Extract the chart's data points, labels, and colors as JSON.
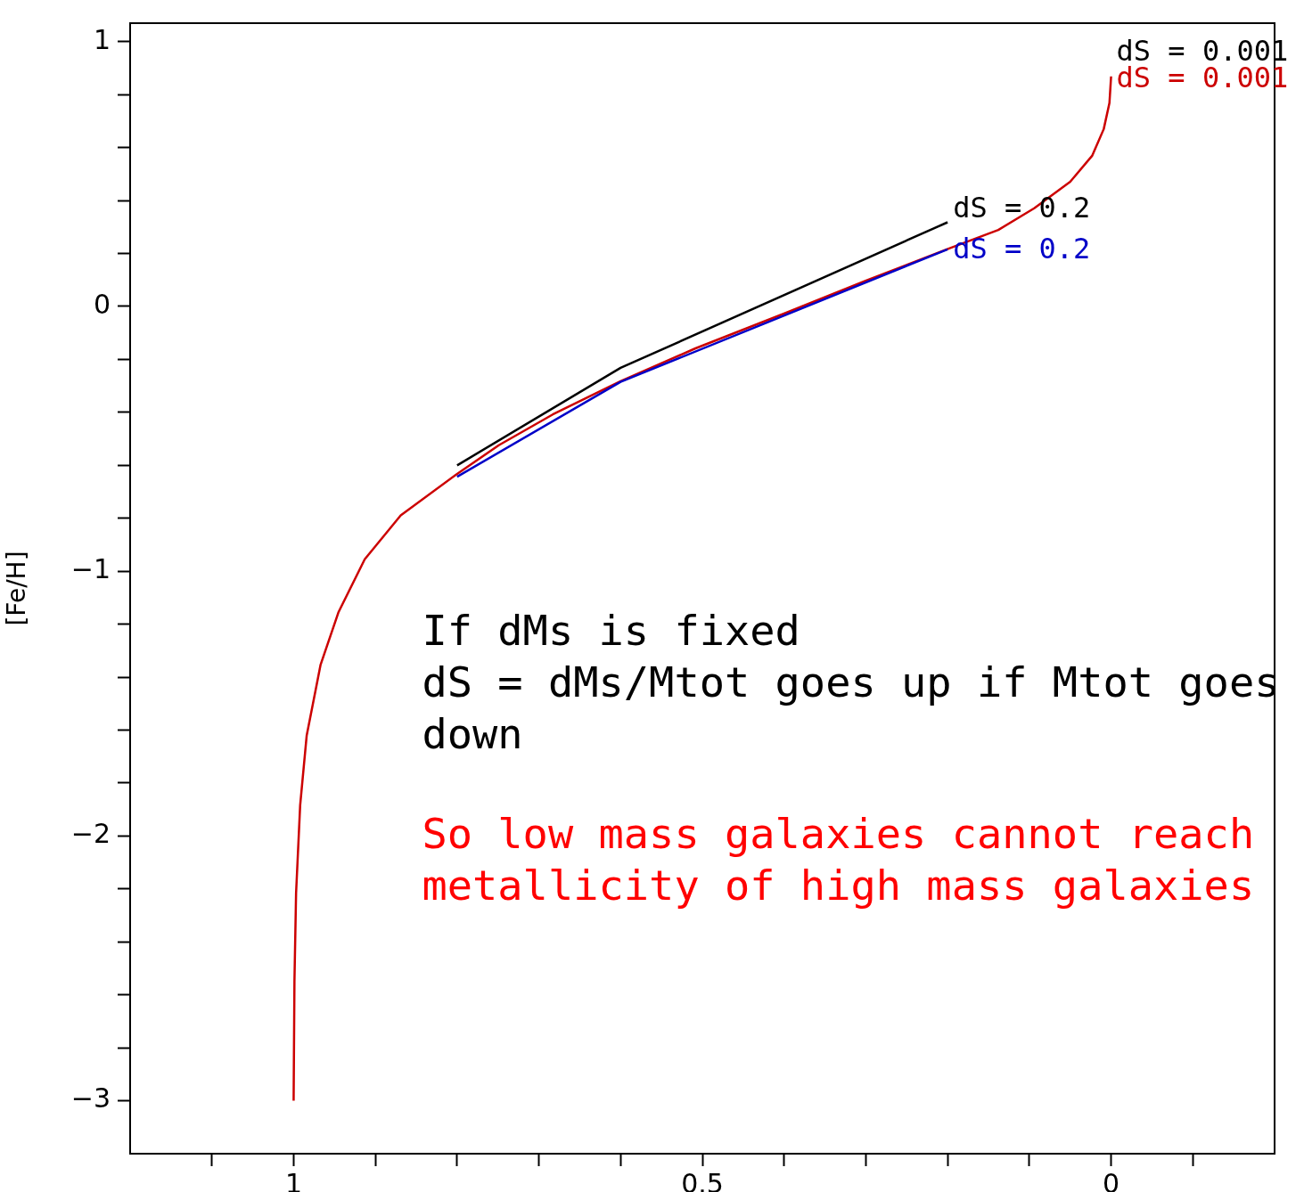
{
  "chart_data": {
    "type": "line",
    "ylabel": "[Fe/H]",
    "xlim": [
      1.2,
      -0.2
    ],
    "ylim": [
      -3.2,
      1.07
    ],
    "xticks": [
      1,
      {
        "value": 1.1,
        "label": null
      },
      {
        "value": 0.9,
        "label": null
      },
      {
        "value": 0.8,
        "label": null
      },
      {
        "value": 0.7,
        "label": null
      },
      {
        "value": 0.6,
        "label": null
      },
      0.5,
      {
        "value": 0.4,
        "label": null
      },
      {
        "value": 0.3,
        "label": null
      },
      {
        "value": 0.2,
        "label": null
      },
      {
        "value": 0.1,
        "label": null
      },
      0,
      {
        "value": -0.1,
        "label": null
      }
    ],
    "yticks": [
      1,
      {
        "value": 0.8,
        "label": null
      },
      {
        "value": 0.6,
        "label": null
      },
      {
        "value": 0.4,
        "label": null
      },
      {
        "value": 0.2,
        "label": null
      },
      0,
      {
        "value": -0.2,
        "label": null
      },
      {
        "value": -0.4,
        "label": null
      },
      {
        "value": -0.6,
        "label": null
      },
      {
        "value": -0.8,
        "label": null
      },
      -1,
      {
        "value": -1.2,
        "label": null
      },
      {
        "value": -1.4,
        "label": null
      },
      {
        "value": -1.6,
        "label": null
      },
      {
        "value": -1.8,
        "label": null
      },
      -2,
      {
        "value": -2.2,
        "label": null
      },
      {
        "value": -2.4,
        "label": null
      },
      {
        "value": -2.6,
        "label": null
      },
      {
        "value": -2.8,
        "label": null
      },
      -3
    ],
    "grid": false,
    "marker": "none",
    "line_style": "solid",
    "series": [
      {
        "name": "dS = 0.2",
        "color": "#000000",
        "x": [
          0.8,
          0.6,
          0.2
        ],
        "values": [
          -0.6,
          -0.232,
          0.318
        ]
      },
      {
        "name": "dS = 0.2",
        "color": "#0000c8",
        "x": [
          0.8,
          0.6,
          0.2
        ],
        "values": [
          -0.643,
          -0.285,
          0.216
        ]
      },
      {
        "name": "dS = 0.001",
        "color": "#cc0000",
        "x": [
          1.0,
          0.999,
          0.997,
          0.992,
          0.984,
          0.967,
          0.945,
          0.913,
          0.869,
          0.802,
          0.749,
          0.683,
          0.6,
          0.509,
          0.4,
          0.301,
          0.201,
          0.138,
          0.094,
          0.05,
          0.023,
          0.009,
          0.002,
          0.0
        ],
        "values": [
          -3.0,
          -2.55,
          -2.216,
          -1.884,
          -1.62,
          -1.353,
          -1.154,
          -0.955,
          -0.789,
          -0.637,
          -0.524,
          -0.408,
          -0.282,
          -0.159,
          -0.027,
          0.096,
          0.216,
          0.289,
          0.371,
          0.471,
          0.57,
          0.67,
          0.769,
          0.869
        ]
      }
    ],
    "annotations": [
      "dS = 0.001",
      "If dMs is fixed\ndS = dMs/Mtot goes up if Mtot goes\ndown",
      "So low mass galaxies cannot reach\nmetallicity of high mass galaxies"
    ]
  }
}
